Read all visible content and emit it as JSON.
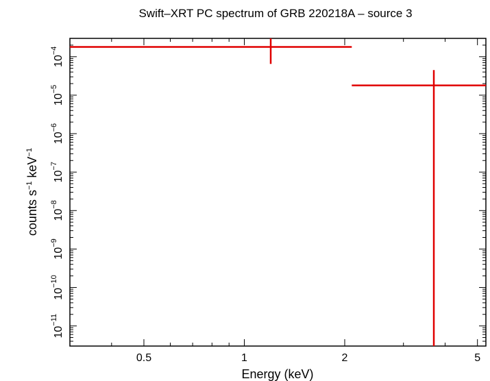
{
  "chart_data": {
    "type": "scatter",
    "title": "Swift–XRT PC spectrum of GRB 220218A – source 3",
    "xlabel": "Energy (keV)",
    "ylabel_parts": {
      "a": "counts s",
      "a_sup": "−1",
      "b": " keV",
      "b_sup": "−1"
    },
    "xscale": "log",
    "yscale": "log",
    "xlim": [
      0.3,
      5.3
    ],
    "ylim": [
      3e-12,
      0.0003
    ],
    "x_ticks": [
      {
        "value": 0.5,
        "label": "0.5"
      },
      {
        "value": 1,
        "label": "1"
      },
      {
        "value": 2,
        "label": "2"
      },
      {
        "value": 5,
        "label": "5"
      }
    ],
    "y_ticks": [
      {
        "value": 0.0001,
        "base": "10",
        "exp": "−4"
      },
      {
        "value": 1e-05,
        "base": "10",
        "exp": "−5"
      },
      {
        "value": 1e-06,
        "base": "10",
        "exp": "−6"
      },
      {
        "value": 1e-07,
        "base": "10",
        "exp": "−7"
      },
      {
        "value": 1e-08,
        "base": "10",
        "exp": "−8"
      },
      {
        "value": 1e-09,
        "base": "10",
        "exp": "−9"
      },
      {
        "value": 1e-10,
        "base": "10",
        "exp": "−10"
      },
      {
        "value": 1e-11,
        "base": "10",
        "exp": "−11"
      }
    ],
    "series": [
      {
        "color": "#e00000",
        "points": [
          {
            "x": 1.2,
            "x_low": 0.3,
            "x_high": 2.1,
            "y": 0.00018,
            "y_low": 6.5e-05,
            "y_high": 0.0003
          },
          {
            "x": 3.7,
            "x_low": 2.1,
            "x_high": 5.3,
            "y": 1.8e-05,
            "y_low": 3e-12,
            "y_high": 4.5e-05
          }
        ]
      }
    ]
  }
}
